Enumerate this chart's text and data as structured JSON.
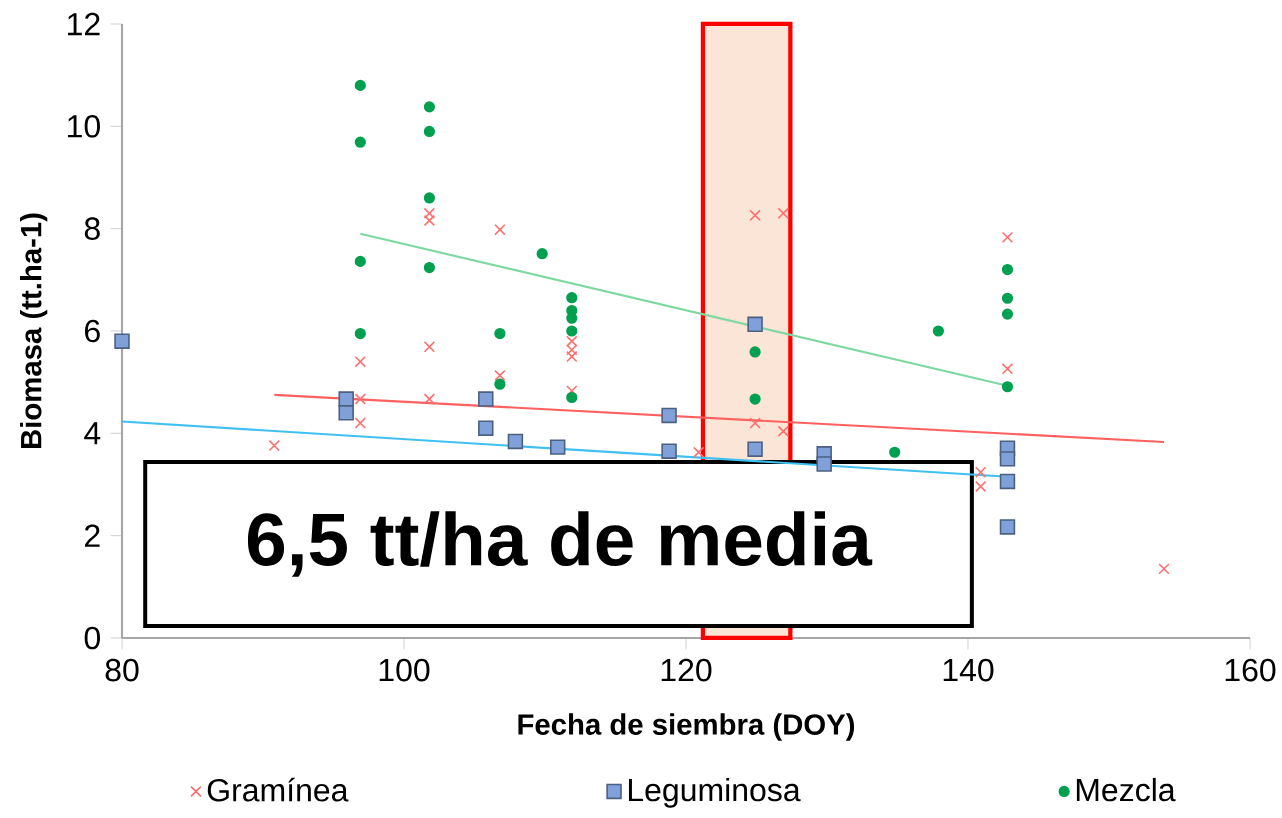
{
  "chart_data": {
    "type": "scatter",
    "xlabel": "Fecha de siembra (DOY)",
    "ylabel": "Biomasa (tt.ha-1)",
    "xlim": [
      80,
      160
    ],
    "xticks": [
      80,
      100,
      120,
      140,
      160
    ],
    "ylim": [
      0,
      12
    ],
    "yticks": [
      0,
      2,
      4,
      6,
      8,
      10,
      12
    ],
    "legend": "bottom",
    "annotations": [
      "6,5 tt/ha de media"
    ],
    "bands": [
      {
        "axis": "x",
        "from": 121.2,
        "to": 127.4,
        "color": "#fbe5d6"
      }
    ],
    "series": [
      {
        "name": "Gramínea",
        "color": "#ff6f6f",
        "marker": "cross",
        "x": [
          90.8,
          96.9,
          96.9,
          96.9,
          101.8,
          101.8,
          101.8,
          101.8,
          106.8,
          106.8,
          111.9,
          111.9,
          111.9,
          111.9,
          120.9,
          124.9,
          126.9,
          124.9,
          126.9,
          142.8,
          142.8,
          140.9,
          140.9,
          153.9
        ],
        "values": [
          3.76,
          5.4,
          4.67,
          4.2,
          8.3,
          8.16,
          5.69,
          4.67,
          7.98,
          5.13,
          5.8,
          5.63,
          5.5,
          4.83,
          3.63,
          8.26,
          8.3,
          4.2,
          4.04,
          7.83,
          5.26,
          3.24,
          2.96,
          1.35
        ]
      },
      {
        "name": "Leguminosa",
        "color": "#7fa0d8",
        "marker": "square",
        "x": [
          80,
          95.9,
          95.9,
          105.8,
          105.8,
          107.9,
          110.9,
          118.8,
          118.8,
          124.9,
          124.9,
          129.8,
          129.8,
          142.8,
          142.8,
          142.8,
          142.8
        ],
        "values": [
          5.8,
          4.67,
          4.4,
          4.67,
          4.1,
          3.84,
          3.73,
          4.35,
          3.65,
          6.13,
          3.69,
          3.6,
          3.4,
          3.71,
          3.5,
          3.06,
          2.17
        ]
      },
      {
        "name": "Mezcla",
        "color": "#00a050",
        "marker": "circle",
        "x": [
          96.9,
          96.9,
          96.9,
          96.9,
          101.8,
          101.8,
          101.8,
          101.8,
          106.8,
          106.8,
          109.8,
          111.9,
          111.9,
          111.9,
          111.9,
          111.9,
          124.9,
          124.9,
          134.8,
          137.9,
          142.8,
          142.8,
          142.8,
          142.8
        ],
        "values": [
          10.8,
          9.69,
          7.36,
          5.95,
          10.38,
          9.9,
          8.6,
          7.24,
          5.95,
          4.96,
          7.51,
          6.65,
          6.4,
          6.25,
          6.0,
          4.7,
          5.59,
          4.67,
          3.63,
          6.0,
          7.2,
          6.64,
          6.33,
          4.91
        ]
      },
      {
        "type": "line",
        "color": "#ff6060",
        "x": [
          90.8,
          153.9
        ],
        "values": [
          4.75,
          3.83
        ]
      },
      {
        "type": "line",
        "color": "#40c0f0",
        "x": [
          80,
          142.8
        ],
        "values": [
          4.23,
          3.15
        ]
      },
      {
        "type": "line",
        "color": "#7fd8a0",
        "x": [
          96.9,
          142.8
        ],
        "values": [
          7.9,
          4.93
        ]
      }
    ]
  }
}
